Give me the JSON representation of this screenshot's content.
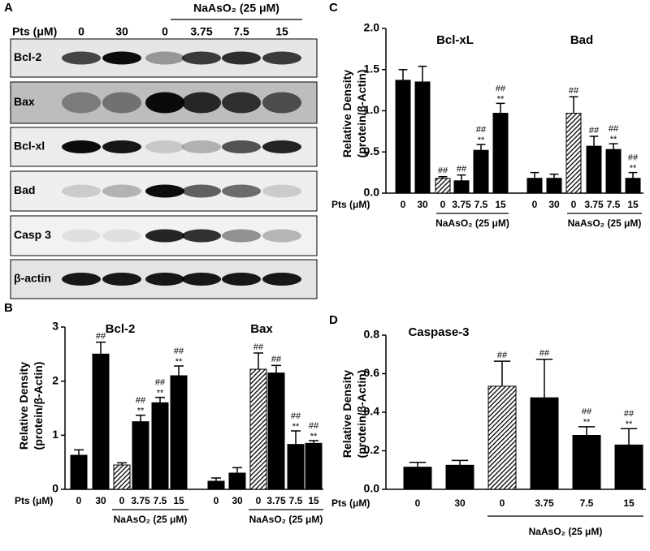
{
  "blot": {
    "panel": "A",
    "treatment_label": "NaAsO₂ (25 μM)",
    "dose_label": "Pts (μM)",
    "doses": [
      "0",
      "30",
      "0",
      "3.75",
      "7.5",
      "15"
    ],
    "rows": [
      "Bcl-2",
      "Bax",
      "Bcl-xl",
      "Bad",
      "Casp 3",
      "β-actin"
    ]
  },
  "chart_data": [
    {
      "type": "bar",
      "panel": "B",
      "ylabel": [
        "Relative Density",
        "(protein/β-Actin)"
      ],
      "x_label": "Pts (μM)",
      "treatment_label": "NaAsO₂ (25 μM)",
      "color": "#000000",
      "ylim": [
        0,
        3
      ],
      "yticks": [
        0,
        1,
        2,
        3
      ],
      "groups": [
        {
          "title": "Bcl-2",
          "categories": [
            "0",
            "30",
            "0",
            "3.75",
            "7.5",
            "15"
          ],
          "values": [
            0.63,
            2.5,
            0.45,
            1.25,
            1.6,
            2.1
          ],
          "errors": [
            0.1,
            0.22,
            0.04,
            0.12,
            0.1,
            0.18
          ],
          "hash": [
            null,
            "##",
            null,
            "##",
            "##",
            "##"
          ],
          "stars": [
            null,
            null,
            null,
            "**",
            "**",
            "**"
          ],
          "hatched": [
            false,
            false,
            true,
            false,
            false,
            false
          ]
        },
        {
          "title": "Bax",
          "categories": [
            "0",
            "30",
            "0",
            "3.75",
            "7.5",
            "15"
          ],
          "values": [
            0.15,
            0.3,
            2.22,
            2.15,
            0.83,
            0.85
          ],
          "errors": [
            0.06,
            0.1,
            0.3,
            0.14,
            0.25,
            0.05
          ],
          "hash": [
            null,
            null,
            "##",
            "##",
            "##",
            "##"
          ],
          "stars": [
            null,
            null,
            null,
            null,
            "**",
            "**"
          ],
          "hatched": [
            false,
            false,
            true,
            false,
            false,
            false
          ]
        }
      ]
    },
    {
      "type": "bar",
      "panel": "C",
      "ylabel": [
        "Relative Density",
        "(protein/β-Actin)"
      ],
      "x_label": "Pts (μM)",
      "treatment_label": "NaAsO₂ (25 μM)",
      "color": "#000000",
      "ylim": [
        0,
        2
      ],
      "yticks": [
        {
          "value": 0,
          "label": "0.0"
        },
        0.5,
        {
          "value": 1,
          "label": "1.0"
        },
        1.5,
        {
          "value": 2,
          "label": "2.0"
        }
      ],
      "groups": [
        {
          "title": "Bcl-xL",
          "categories": [
            "0",
            "30",
            "0",
            "3.75",
            "7.5",
            "15"
          ],
          "values": [
            1.37,
            1.35,
            0.18,
            0.15,
            0.52,
            0.97
          ],
          "errors": [
            0.13,
            0.19,
            0.02,
            0.07,
            0.07,
            0.12
          ],
          "hash": [
            null,
            null,
            "##",
            "##",
            "##",
            "##"
          ],
          "stars": [
            null,
            null,
            null,
            null,
            "**",
            "**"
          ],
          "hatched": [
            false,
            false,
            true,
            false,
            false,
            false
          ]
        },
        {
          "title": "Bad",
          "categories": [
            "0",
            "30",
            "0",
            "3.75",
            "7.5",
            "15"
          ],
          "values": [
            0.18,
            0.18,
            0.97,
            0.57,
            0.53,
            0.18
          ],
          "errors": [
            0.07,
            0.05,
            0.2,
            0.12,
            0.07,
            0.07
          ],
          "hash": [
            null,
            null,
            "##",
            "##",
            "##",
            "##"
          ],
          "stars": [
            null,
            null,
            null,
            null,
            "**",
            "**"
          ],
          "hatched": [
            false,
            false,
            true,
            false,
            false,
            false
          ]
        }
      ]
    },
    {
      "type": "bar",
      "panel": "D",
      "ylabel": [
        "Relative Density",
        "(protein/β-Actin)"
      ],
      "x_label": "Pts (μM)",
      "treatment_label": "NaAsO₂ (25 μM)",
      "color": "#000000",
      "ylim": [
        0,
        0.8
      ],
      "yticks": [
        {
          "value": 0,
          "label": "0.0"
        },
        0.2,
        0.4,
        0.6,
        0.8
      ],
      "groups": [
        {
          "title": "Caspase-3",
          "categories": [
            "0",
            "30",
            "0",
            "3.75",
            "7.5",
            "15"
          ],
          "values": [
            0.115,
            0.125,
            0.535,
            0.475,
            0.28,
            0.23
          ],
          "errors": [
            0.025,
            0.025,
            0.13,
            0.2,
            0.045,
            0.085
          ],
          "hash": [
            null,
            null,
            "##",
            "##",
            "##",
            "##"
          ],
          "stars": [
            null,
            null,
            null,
            null,
            "**",
            "**"
          ],
          "hatched": [
            false,
            false,
            true,
            false,
            false,
            false
          ]
        }
      ]
    }
  ]
}
